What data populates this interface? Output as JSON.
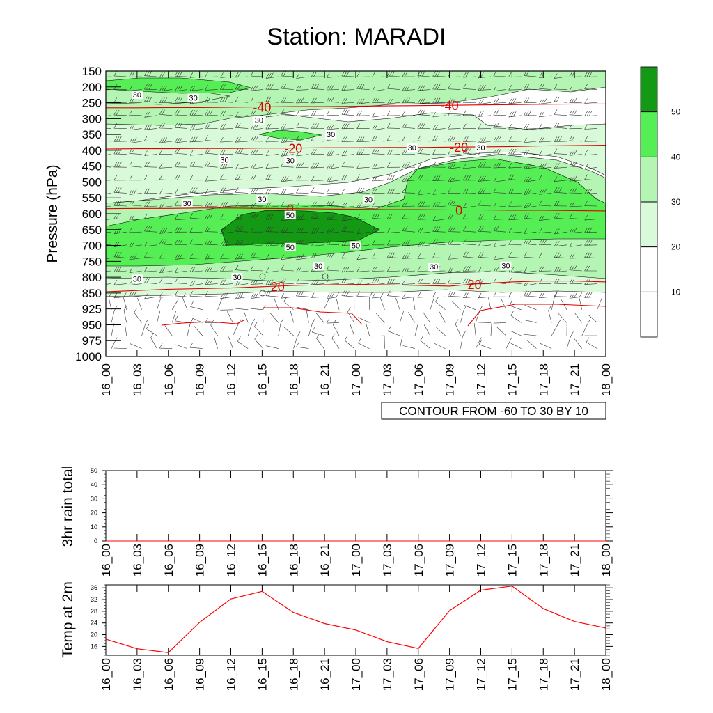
{
  "title": "Station: MARADI",
  "time_labels": [
    "16_00",
    "16_03",
    "16_06",
    "16_09",
    "16_12",
    "16_15",
    "16_18",
    "16_21",
    "17_00",
    "17_03",
    "17_06",
    "17_09",
    "17_12",
    "17_15",
    "17_18",
    "17_21",
    "18_00"
  ],
  "chart_data": [
    {
      "type": "heatmap",
      "name": "wind-speed-cross-section",
      "ylabel": "Pressure (hPa)",
      "pressure_levels": [
        150,
        200,
        250,
        300,
        350,
        400,
        450,
        500,
        550,
        600,
        650,
        700,
        750,
        800,
        850,
        925,
        950,
        975,
        1000
      ],
      "colorbar": {
        "bounds": [
          0,
          10,
          20,
          30,
          40,
          50,
          60
        ],
        "tick_labels": [
          "10",
          "20",
          "30",
          "40",
          "50"
        ],
        "colors": [
          "#ffffff",
          "#ffffff",
          "#d9fad9",
          "#b4f5b4",
          "#55ee55",
          "#149914"
        ]
      },
      "speed_labels": [
        {
          "text": "30",
          "t": 1.0,
          "p": 225
        },
        {
          "text": "30",
          "t": 2.8,
          "p": 235
        },
        {
          "text": "30",
          "t": 4.9,
          "p": 305
        },
        {
          "text": "30",
          "t": 7.2,
          "p": 350
        },
        {
          "text": "30",
          "t": 9.8,
          "p": 392
        },
        {
          "text": "30",
          "t": 12.0,
          "p": 392
        },
        {
          "text": "30",
          "t": 3.8,
          "p": 430
        },
        {
          "text": "30",
          "t": 5.9,
          "p": 432
        },
        {
          "text": "30",
          "t": 8.4,
          "p": 555
        },
        {
          "text": "30",
          "t": 2.6,
          "p": 567
        },
        {
          "text": "30",
          "t": 5.0,
          "p": 554
        },
        {
          "text": "50",
          "t": 5.9,
          "p": 604
        },
        {
          "text": "50",
          "t": 5.9,
          "p": 705
        },
        {
          "text": "50",
          "t": 8.0,
          "p": 700
        },
        {
          "text": "30",
          "t": 6.8,
          "p": 765
        },
        {
          "text": "30",
          "t": 10.5,
          "p": 767
        },
        {
          "text": "30",
          "t": 12.8,
          "p": 764
        },
        {
          "text": "30",
          "t": 1.0,
          "p": 805
        },
        {
          "text": "30",
          "t": 4.2,
          "p": 800
        }
      ],
      "temperature_contours": [
        {
          "label": "-40",
          "values": [
            266,
            266,
            265,
            265,
            264,
            263,
            262,
            262,
            261,
            260,
            259,
            258,
            257,
            256,
            255,
            254,
            254
          ]
        },
        {
          "label": "-20",
          "values": [
            396,
            395,
            395,
            394,
            394,
            393,
            393,
            392,
            392,
            391,
            391,
            390,
            389,
            388,
            386,
            385,
            384
          ]
        },
        {
          "label": "0",
          "values": [
            584,
            583,
            583,
            582,
            582,
            583,
            584,
            585,
            586,
            587,
            587,
            588,
            588,
            589,
            589,
            590,
            591
          ]
        },
        {
          "label": "20",
          "values": [
            846,
            842,
            838,
            836,
            834,
            830,
            826,
            824,
            823,
            824,
            826,
            828,
            820,
            815,
            812,
            812,
            815
          ]
        }
      ],
      "contour_info": "CONTOUR FROM -60 TO 30 BY 10"
    },
    {
      "type": "line",
      "name": "3hr-rain-total",
      "ylabel": "3hr rain total",
      "yticks": [
        "0",
        "10",
        "20",
        "30",
        "40",
        "50"
      ],
      "ylim": [
        0,
        50
      ],
      "values": [
        0,
        0,
        0,
        0,
        0,
        0,
        0,
        0,
        0,
        0,
        0,
        0,
        0,
        0,
        0,
        0,
        0
      ]
    },
    {
      "type": "line",
      "name": "temp-at-2m",
      "ylabel": "Temp at 2m",
      "yticks": [
        "16",
        "20",
        "24",
        "28",
        "32",
        "36"
      ],
      "ylim": [
        13,
        37
      ],
      "values": [
        18.5,
        15.2,
        13.9,
        24.2,
        32.2,
        34.8,
        27.6,
        23.8,
        21.6,
        17.6,
        15.3,
        28.2,
        35.2,
        36.6,
        28.9,
        24.5,
        22.3
      ],
      "color": "#ff0000"
    }
  ]
}
